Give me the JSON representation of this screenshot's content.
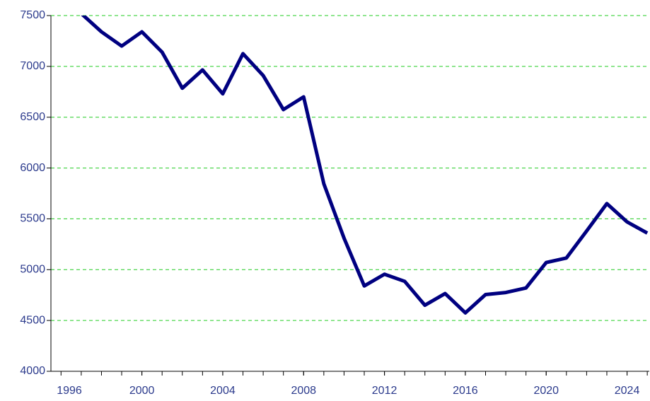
{
  "chart_data": {
    "type": "line",
    "x": [
      1997,
      1998,
      1999,
      2000,
      2001,
      2002,
      2003,
      2004,
      2005,
      2006,
      2007,
      2008,
      2009,
      2010,
      2011,
      2012,
      2013,
      2014,
      2015,
      2016,
      2017,
      2018,
      2019,
      2020,
      2021,
      2022,
      2023,
      2024,
      2025
    ],
    "series": [
      {
        "color": "#000080",
        "values": [
          7520,
          7340,
          7200,
          7340,
          7140,
          6785,
          6965,
          6730,
          7125,
          6910,
          6575,
          6700,
          5845,
          5310,
          4840,
          4955,
          4885,
          4650,
          4765,
          4575,
          4755,
          4775,
          4820,
          5070,
          5115,
          5380,
          5650,
          5470,
          5360
        ]
      }
    ],
    "xlim": [
      1995.5,
      2025.1
    ],
    "xticks": [
      1996,
      2000,
      2004,
      2008,
      2012,
      2016,
      2020,
      2024
    ],
    "ylim": [
      4000,
      7500
    ],
    "yticks": [
      4000,
      4500,
      5000,
      5500,
      6000,
      6500,
      7000,
      7500
    ],
    "grid": true,
    "grid_color": "#22cc22"
  }
}
